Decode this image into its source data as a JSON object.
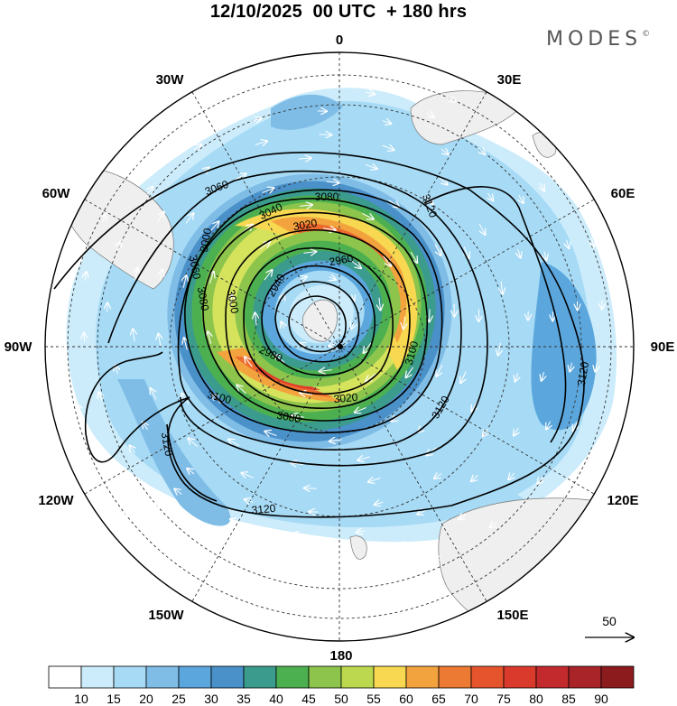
{
  "header": {
    "title": "12/10/2025  00 UTC  + 180 hrs",
    "logo": "MODES",
    "logo_mark": "©"
  },
  "map": {
    "projection": "south-polar-stereographic",
    "longitude_labels": [
      {
        "text": "0",
        "lon": 0
      },
      {
        "text": "30E",
        "lon": 30
      },
      {
        "text": "60E",
        "lon": 60
      },
      {
        "text": "90E",
        "lon": 90
      },
      {
        "text": "120E",
        "lon": 120
      },
      {
        "text": "150E",
        "lon": 150
      },
      {
        "text": "180",
        "lon": 180
      },
      {
        "text": "150W",
        "lon": -150
      },
      {
        "text": "120W",
        "lon": -120
      },
      {
        "text": "90W",
        "lon": -90
      },
      {
        "text": "60W",
        "lon": -60
      },
      {
        "text": "30W",
        "lon": -30
      }
    ],
    "contour_labels": [
      {
        "text": "3080",
        "lon": 0
      },
      {
        "text": "3060",
        "lon": -35
      },
      {
        "text": "3040",
        "lon": -15
      },
      {
        "text": "3020",
        "lon": 20
      },
      {
        "text": "3000",
        "lon": -60
      },
      {
        "text": "2960",
        "lon": 30
      },
      {
        "text": "2940",
        "lon": -40
      },
      {
        "text": "3000",
        "lon": -95
      },
      {
        "text": "3060",
        "lon": -78
      },
      {
        "text": "3080",
        "lon": -70
      },
      {
        "text": "3120",
        "lon": 70
      },
      {
        "text": "3100",
        "lon": 100
      },
      {
        "text": "3120",
        "lon": 115
      },
      {
        "text": "3120",
        "lon": 93
      },
      {
        "text": "2980",
        "lon": -125
      },
      {
        "text": "3020",
        "lon": 165
      },
      {
        "text": "3080",
        "lon": -170
      },
      {
        "text": "3100",
        "lon": -115
      },
      {
        "text": "3120",
        "lon": -130
      },
      {
        "text": "3120",
        "lon": -165
      }
    ],
    "wind_reference": {
      "value": "50"
    },
    "fill_color": "#b8def3",
    "jet_colors": [
      "#7fbde6",
      "#4a90c9",
      "#3b9b8c",
      "#4cb050",
      "#8cc44c",
      "#d4e25c",
      "#f7d850",
      "#f3a33e",
      "#ec6a2e",
      "#e23b2b"
    ]
  },
  "colorbar": {
    "levels": [
      "10",
      "15",
      "20",
      "25",
      "30",
      "35",
      "40",
      "45",
      "50",
      "55",
      "60",
      "65",
      "70",
      "75",
      "80",
      "85",
      "90"
    ],
    "colors": [
      "#ffffff",
      "#ccecfb",
      "#a6daf5",
      "#7fbde6",
      "#5ba7dd",
      "#4a90c9",
      "#3b9b8c",
      "#4cb050",
      "#8cc44c",
      "#bcd84e",
      "#f7d850",
      "#f3a33e",
      "#ec7a33",
      "#e5542d",
      "#d93a2c",
      "#c32a2d",
      "#a82428",
      "#8c1b1e"
    ]
  }
}
